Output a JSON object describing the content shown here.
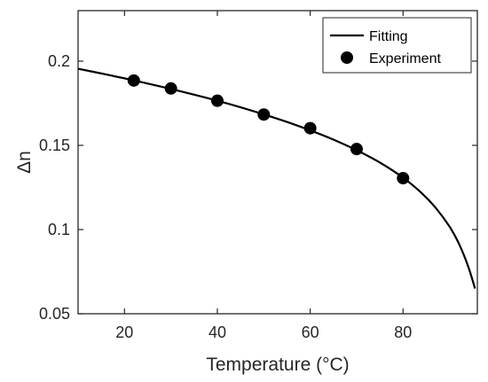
{
  "chart_data": {
    "type": "scatter",
    "title": "",
    "xlabel": "Temperature (°C)",
    "ylabel": "Δn",
    "xlim": [
      10,
      96
    ],
    "ylim": [
      0.05,
      0.23
    ],
    "xticks": [
      20,
      40,
      60,
      80
    ],
    "yticks": [
      0.05,
      0.1,
      0.15,
      0.2
    ],
    "xtick_labels": [
      "20",
      "40",
      "60",
      "80"
    ],
    "ytick_labels": [
      "0.05",
      "0.1",
      "0.15",
      "0.2"
    ],
    "grid": false,
    "legend_position": "top-right",
    "series": [
      {
        "name": "Fitting",
        "kind": "line",
        "color": "#000000",
        "x": [
          10,
          15,
          20,
          25,
          30,
          35,
          40,
          45,
          50,
          55,
          60,
          65,
          70,
          75,
          80,
          84,
          87,
          90,
          92,
          94,
          95.5
        ],
        "y": [
          0.1955,
          0.1927,
          0.1898,
          0.1867,
          0.1835,
          0.1801,
          0.1765,
          0.1726,
          0.1684,
          0.1639,
          0.1589,
          0.1534,
          0.1471,
          0.1398,
          0.1308,
          0.1217,
          0.113,
          0.1018,
          0.0918,
          0.0783,
          0.065
        ]
      },
      {
        "name": "Experiment",
        "kind": "scatter",
        "color": "#000000",
        "x": [
          22,
          30,
          40,
          50,
          60,
          70,
          80
        ],
        "y": [
          0.1885,
          0.1838,
          0.1765,
          0.1683,
          0.1602,
          0.1478,
          0.1305
        ]
      }
    ]
  }
}
